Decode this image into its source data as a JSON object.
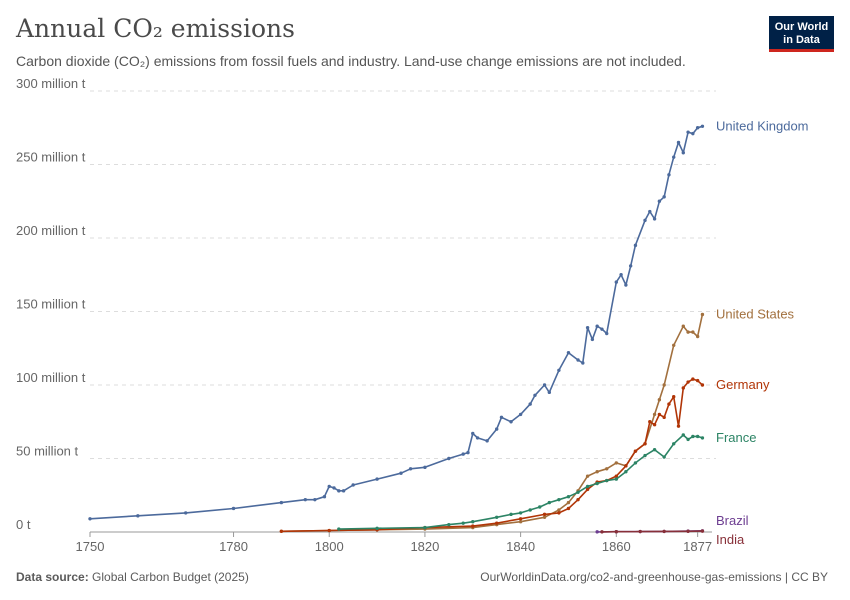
{
  "header": {
    "title": "Annual CO₂ emissions",
    "subtitle": "Carbon dioxide (CO₂) emissions from fossil fuels and industry. Land-use change emissions are not included."
  },
  "logo": {
    "line1": "Our World",
    "line2": "in Data"
  },
  "footer": {
    "source_label": "Data source:",
    "source_value": "Global Carbon Budget (2025)",
    "url": "OurWorldinData.org/co2-and-greenhouse-gas-emissions | CC BY"
  },
  "chart_data": {
    "type": "line",
    "title": "Annual CO₂ emissions",
    "xlim": [
      1750,
      1880
    ],
    "ylim": [
      0,
      300
    ],
    "grid": true,
    "y_ticks": [
      {
        "value": 0,
        "label": "0 t"
      },
      {
        "value": 50,
        "label": "50 million t"
      },
      {
        "value": 100,
        "label": "100 million t"
      },
      {
        "value": 150,
        "label": "150 million t"
      },
      {
        "value": 200,
        "label": "200 million t"
      },
      {
        "value": 250,
        "label": "250 million t"
      },
      {
        "value": 300,
        "label": "300 million t"
      }
    ],
    "x_ticks": [
      {
        "value": 1750,
        "label": "1750"
      },
      {
        "value": 1780,
        "label": "1780"
      },
      {
        "value": 1800,
        "label": "1800"
      },
      {
        "value": 1820,
        "label": "1820"
      },
      {
        "value": 1840,
        "label": "1840"
      },
      {
        "value": 1860,
        "label": "1860"
      },
      {
        "value": 1877,
        "label": "1877"
      }
    ],
    "series": [
      {
        "name": "United Kingdom",
        "color": "#4c6a9c",
        "x": [
          1750,
          1760,
          1770,
          1780,
          1790,
          1795,
          1797,
          1799,
          1800,
          1801,
          1802,
          1803,
          1805,
          1810,
          1815,
          1817,
          1820,
          1825,
          1828,
          1829,
          1830,
          1831,
          1833,
          1835,
          1836,
          1838,
          1840,
          1842,
          1843,
          1845,
          1846,
          1848,
          1850,
          1852,
          1853,
          1854,
          1855,
          1856,
          1857,
          1858,
          1860,
          1861,
          1862,
          1863,
          1864,
          1866,
          1867,
          1868,
          1869,
          1870,
          1871,
          1872,
          1873,
          1874,
          1875,
          1876,
          1877,
          1878
        ],
        "y": [
          9,
          11,
          13,
          16,
          20,
          22,
          22,
          24,
          31,
          30,
          28,
          28,
          32,
          36,
          40,
          43,
          44,
          50,
          53,
          54,
          67,
          64,
          62,
          70,
          78,
          75,
          80,
          87,
          93,
          100,
          95,
          110,
          122,
          117,
          115,
          139,
          131,
          140,
          138,
          135,
          170,
          175,
          168,
          181,
          195,
          212,
          218,
          213,
          225,
          228,
          243,
          255,
          265,
          258,
          272,
          271,
          275,
          276
        ]
      },
      {
        "name": "United States",
        "color": "#a2703e",
        "x": [
          1790,
          1800,
          1810,
          1820,
          1830,
          1835,
          1840,
          1845,
          1848,
          1850,
          1852,
          1854,
          1856,
          1858,
          1860,
          1862,
          1864,
          1866,
          1868,
          1869,
          1870,
          1872,
          1874,
          1875,
          1876,
          1877,
          1878
        ],
        "y": [
          0.5,
          1,
          1.5,
          2,
          3,
          5,
          7,
          10,
          15,
          20,
          28,
          38,
          41,
          43,
          47,
          45,
          55,
          60,
          80,
          90,
          100,
          127,
          140,
          136,
          136,
          133,
          148
        ]
      },
      {
        "name": "Germany",
        "color": "#b13507",
        "x": [
          1790,
          1800,
          1810,
          1820,
          1830,
          1835,
          1840,
          1845,
          1848,
          1850,
          1852,
          1854,
          1856,
          1858,
          1860,
          1862,
          1864,
          1866,
          1867,
          1868,
          1869,
          1870,
          1871,
          1872,
          1873,
          1874,
          1875,
          1876,
          1877,
          1878
        ],
        "y": [
          0.5,
          1,
          1.5,
          3,
          4,
          6,
          9,
          12,
          13,
          16,
          22,
          29,
          34,
          35,
          38,
          45,
          55,
          60,
          75,
          73,
          80,
          78,
          87,
          92,
          72,
          98,
          102,
          104,
          103,
          100
        ]
      },
      {
        "name": "France",
        "color": "#2c8465",
        "x": [
          1802,
          1810,
          1820,
          1825,
          1828,
          1830,
          1835,
          1838,
          1840,
          1842,
          1844,
          1846,
          1848,
          1850,
          1852,
          1854,
          1856,
          1858,
          1860,
          1862,
          1864,
          1866,
          1868,
          1870,
          1872,
          1874,
          1875,
          1876,
          1877,
          1878
        ],
        "y": [
          2,
          2.5,
          3,
          5,
          6,
          7,
          10,
          12,
          13,
          15,
          17,
          20,
          22,
          24,
          27,
          31,
          33,
          35,
          36,
          41,
          47,
          52,
          56,
          51,
          60,
          66,
          63,
          65,
          65,
          64
        ]
      },
      {
        "name": "Brazil",
        "color": "#6d3e91",
        "x": [
          1856,
          1860,
          1865,
          1870,
          1875,
          1878
        ],
        "y": [
          0.1,
          0.2,
          0.3,
          0.4,
          0.6,
          0.8
        ]
      },
      {
        "name": "India",
        "color": "#883039",
        "x": [
          1857,
          1860,
          1865,
          1870,
          1875,
          1878
        ],
        "y": [
          0.1,
          0.2,
          0.3,
          0.4,
          0.5,
          0.6
        ]
      }
    ]
  }
}
